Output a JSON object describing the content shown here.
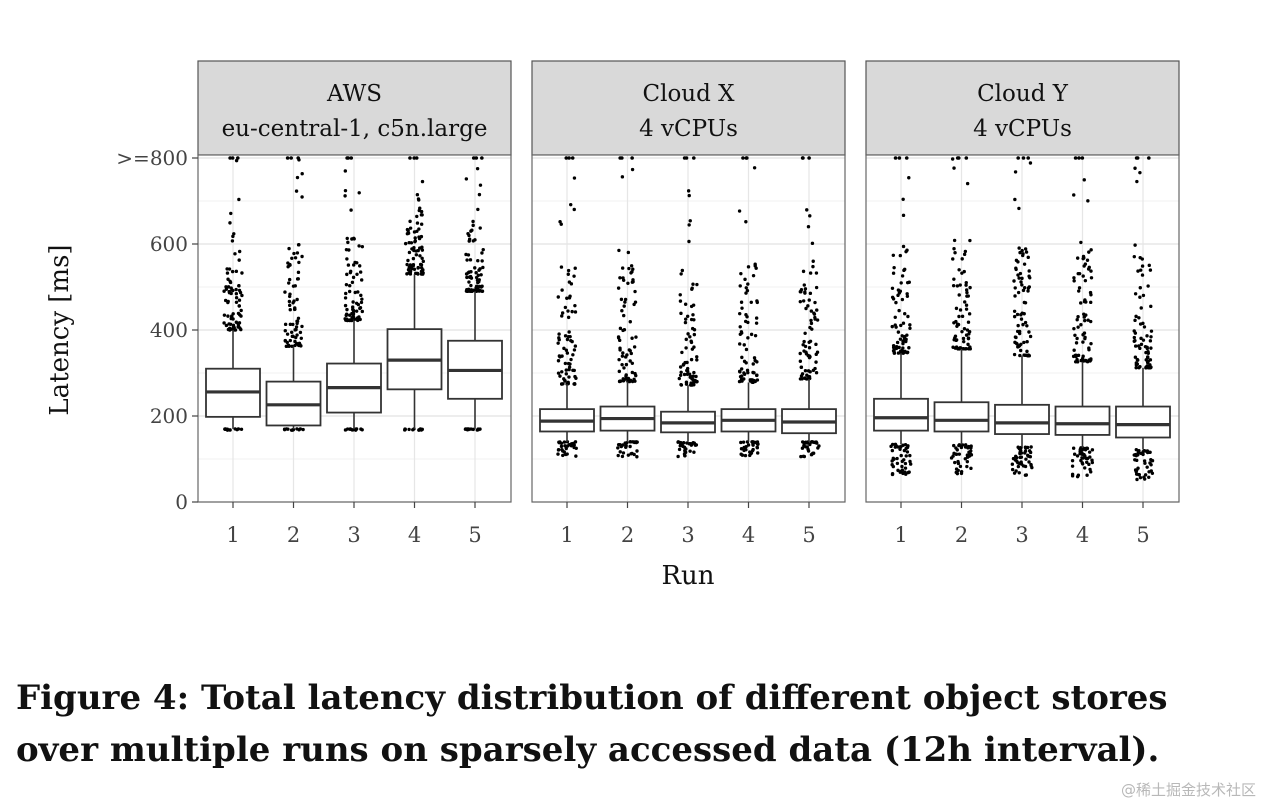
{
  "caption": "Figure 4: Total latency distribution of different object stores over multiple runs on sparsely accessed data (12h interval).",
  "watermark": "@稀土掘金技术社区",
  "chart_data": {
    "type": "box",
    "xlabel": "Run",
    "ylabel": "Latency [ms]",
    "ylim": [
      0,
      800
    ],
    "yticks": [
      0,
      200,
      400,
      600,
      800
    ],
    "ytick_labels": [
      "0",
      "200",
      "400",
      "600",
      ">=800"
    ],
    "categories": [
      "1",
      "2",
      "3",
      "4",
      "5"
    ],
    "grid": true,
    "panels": [
      {
        "title_lines": [
          "AWS",
          "eu-central-1, c5n.large"
        ],
        "boxes": [
          {
            "run": "1",
            "lower_whisker": 170,
            "q1": 198,
            "median": 256,
            "q3": 310,
            "upper_whisker": 400
          },
          {
            "run": "2",
            "lower_whisker": 170,
            "q1": 178,
            "median": 226,
            "q3": 280,
            "upper_whisker": 362
          },
          {
            "run": "3",
            "lower_whisker": 170,
            "q1": 208,
            "median": 266,
            "q3": 322,
            "upper_whisker": 422
          },
          {
            "run": "4",
            "lower_whisker": 170,
            "q1": 262,
            "median": 330,
            "q3": 402,
            "upper_whisker": 530
          },
          {
            "run": "5",
            "lower_whisker": 170,
            "q1": 240,
            "median": 306,
            "q3": 375,
            "upper_whisker": 490
          }
        ]
      },
      {
        "title_lines": [
          "Cloud X",
          "4 vCPUs"
        ],
        "boxes": [
          {
            "run": "1",
            "lower_whisker": 140,
            "q1": 164,
            "median": 188,
            "q3": 216,
            "upper_whisker": 274
          },
          {
            "run": "2",
            "lower_whisker": 140,
            "q1": 166,
            "median": 194,
            "q3": 222,
            "upper_whisker": 280
          },
          {
            "run": "3",
            "lower_whisker": 140,
            "q1": 162,
            "median": 184,
            "q3": 210,
            "upper_whisker": 272
          },
          {
            "run": "4",
            "lower_whisker": 140,
            "q1": 164,
            "median": 190,
            "q3": 216,
            "upper_whisker": 278
          },
          {
            "run": "5",
            "lower_whisker": 140,
            "q1": 160,
            "median": 186,
            "q3": 216,
            "upper_whisker": 286
          }
        ]
      },
      {
        "title_lines": [
          "Cloud Y",
          "4 vCPUs"
        ],
        "boxes": [
          {
            "run": "1",
            "lower_whisker": 134,
            "q1": 166,
            "median": 196,
            "q3": 240,
            "upper_whisker": 346
          },
          {
            "run": "2",
            "lower_whisker": 134,
            "q1": 164,
            "median": 190,
            "q3": 232,
            "upper_whisker": 356
          },
          {
            "run": "3",
            "lower_whisker": 128,
            "q1": 158,
            "median": 184,
            "q3": 226,
            "upper_whisker": 340
          },
          {
            "run": "4",
            "lower_whisker": 126,
            "q1": 156,
            "median": 182,
            "q3": 222,
            "upper_whisker": 326
          },
          {
            "run": "5",
            "lower_whisker": 122,
            "q1": 150,
            "median": 180,
            "q3": 222,
            "upper_whisker": 312
          }
        ]
      }
    ]
  }
}
